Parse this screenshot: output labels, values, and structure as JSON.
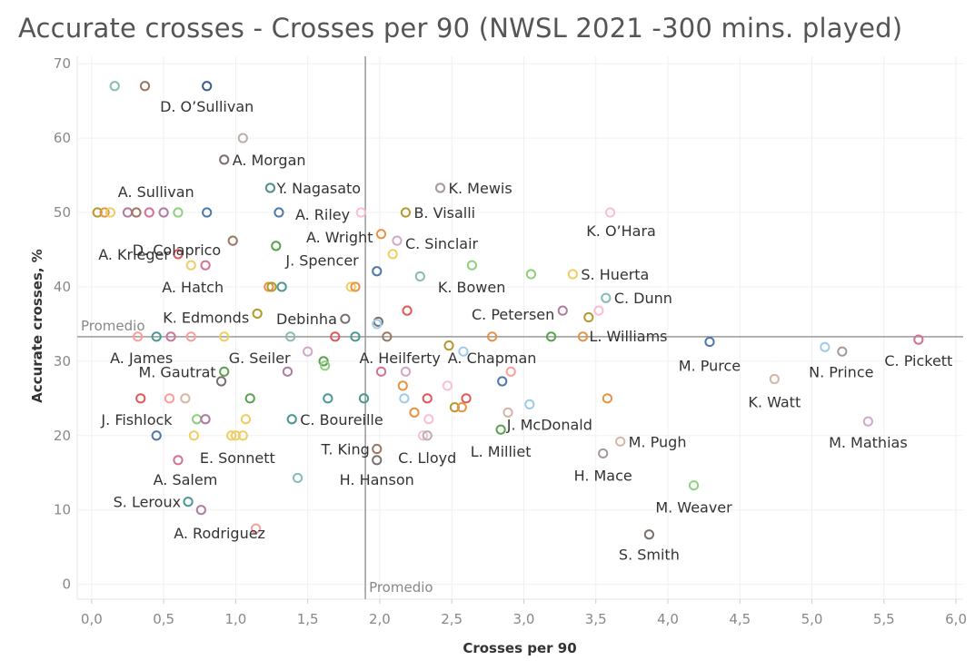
{
  "chart_data": {
    "type": "scatter",
    "title": "Accurate crosses - Crosses per 90 (NWSL 2021 -300 mins. played)",
    "xlabel": "Crosses per 90",
    "ylabel": "Accurate crosses, %",
    "xlim": [
      -0.1,
      6.05
    ],
    "ylim": [
      -2,
      71
    ],
    "xticks": [
      "0,0",
      "0,5",
      "1,0",
      "1,5",
      "2,0",
      "2,5",
      "3,0",
      "3,5",
      "4,0",
      "4,5",
      "5,0",
      "5,5",
      "6,0"
    ],
    "yticks": [
      "0",
      "10",
      "20",
      "30",
      "40",
      "50",
      "60",
      "70"
    ],
    "grid": true,
    "reference_lines": {
      "x_average": {
        "value": 1.9,
        "label": "Promedio"
      },
      "y_average": {
        "value": 33.3,
        "label": "Promedio"
      }
    },
    "points": [
      {
        "x": 0.8,
        "y": 67.0,
        "color": "#3b5f8a",
        "label": "D. O’Sullivan"
      },
      {
        "x": 0.16,
        "y": 67.0,
        "color": "#86bcb6",
        "label": ""
      },
      {
        "x": 0.37,
        "y": 67.0,
        "color": "#9d7660",
        "label": ""
      },
      {
        "x": 1.05,
        "y": 60.0,
        "color": "#bab0ac",
        "label": ""
      },
      {
        "x": 0.92,
        "y": 57.1,
        "color": "#79706e",
        "label": "A. Morgan"
      },
      {
        "x": 1.24,
        "y": 53.3,
        "color": "#4e8f8c",
        "label": "Y. Nagasato"
      },
      {
        "x": 2.42,
        "y": 53.3,
        "color": "#a49a99",
        "label": "K. Mewis"
      },
      {
        "x": 0.04,
        "y": 50.0,
        "color": "#b6992d",
        "label": ""
      },
      {
        "x": 0.09,
        "y": 50.0,
        "color": "#e49444",
        "label": ""
      },
      {
        "x": 0.13,
        "y": 50.0,
        "color": "#f1ce63",
        "label": ""
      },
      {
        "x": 0.25,
        "y": 50.0,
        "color": "#b07aa1",
        "label": ""
      },
      {
        "x": 0.31,
        "y": 50.0,
        "color": "#9d7660",
        "label": ""
      },
      {
        "x": 0.4,
        "y": 50.0,
        "color": "#d37295",
        "label": ""
      },
      {
        "x": 0.5,
        "y": 50.0,
        "color": "#b07aa1",
        "label": ""
      },
      {
        "x": 0.6,
        "y": 50.0,
        "color": "#8cd17d",
        "label": ""
      },
      {
        "x": 0.8,
        "y": 50.0,
        "color": "#4e79a7",
        "label": "A. Sullivan"
      },
      {
        "x": 1.3,
        "y": 50.0,
        "color": "#4e79a7",
        "label": "A. Riley"
      },
      {
        "x": 1.87,
        "y": 50.0,
        "color": "#fabfd2",
        "label": ""
      },
      {
        "x": 2.18,
        "y": 50.0,
        "color": "#b6992d",
        "label": "B. Visalli"
      },
      {
        "x": 3.6,
        "y": 50.0,
        "color": "#fabfd2",
        "label": "K. O’Hara"
      },
      {
        "x": 0.98,
        "y": 46.2,
        "color": "#9d7660",
        "label": "D. Colaprico"
      },
      {
        "x": 2.01,
        "y": 47.1,
        "color": "#e49444",
        "label": "A. Wright"
      },
      {
        "x": 2.12,
        "y": 46.2,
        "color": "#d4a6c8",
        "label": "C. Sinclair"
      },
      {
        "x": 1.28,
        "y": 45.5,
        "color": "#59a14f",
        "label": ""
      },
      {
        "x": 2.09,
        "y": 44.4,
        "color": "#f1ce63",
        "label": ""
      },
      {
        "x": 0.6,
        "y": 44.4,
        "color": "#e15759",
        "label": "A. Krieger"
      },
      {
        "x": 0.69,
        "y": 42.9,
        "color": "#f1ce63",
        "label": ""
      },
      {
        "x": 0.79,
        "y": 42.9,
        "color": "#d37295",
        "label": "A. Hatch"
      },
      {
        "x": 1.98,
        "y": 42.1,
        "color": "#4e79a7",
        "label": "J. Spencer"
      },
      {
        "x": 2.64,
        "y": 42.9,
        "color": "#8cd17d",
        "label": "K. Bowen"
      },
      {
        "x": 2.28,
        "y": 41.4,
        "color": "#86bcb6",
        "label": ""
      },
      {
        "x": 3.05,
        "y": 41.7,
        "color": "#8cd17d",
        "label": ""
      },
      {
        "x": 3.34,
        "y": 41.7,
        "color": "#f1ce63",
        "label": "S. Huerta"
      },
      {
        "x": 1.23,
        "y": 40.0,
        "color": "#e49444",
        "label": ""
      },
      {
        "x": 1.25,
        "y": 40.0,
        "color": "#b6992d",
        "label": ""
      },
      {
        "x": 1.32,
        "y": 40.0,
        "color": "#499894",
        "label": ""
      },
      {
        "x": 1.8,
        "y": 40.0,
        "color": "#f1ce63",
        "label": ""
      },
      {
        "x": 1.83,
        "y": 40.0,
        "color": "#e49444",
        "label": ""
      },
      {
        "x": 3.57,
        "y": 38.5,
        "color": "#86bcb6",
        "label": "C. Dunn"
      },
      {
        "x": 2.19,
        "y": 36.8,
        "color": "#e15759",
        "label": ""
      },
      {
        "x": 3.27,
        "y": 36.8,
        "color": "#b07aa1",
        "label": "C. Petersen"
      },
      {
        "x": 3.52,
        "y": 36.8,
        "color": "#fabfd2",
        "label": ""
      },
      {
        "x": 3.45,
        "y": 35.9,
        "color": "#b6992d",
        "label": ""
      },
      {
        "x": 1.15,
        "y": 36.4,
        "color": "#b6992d",
        "label": "K. Edmonds"
      },
      {
        "x": 1.76,
        "y": 35.7,
        "color": "#79706e",
        "label": "Debinha"
      },
      {
        "x": 1.99,
        "y": 35.3,
        "color": "#79706e",
        "label": ""
      },
      {
        "x": 1.98,
        "y": 35.0,
        "color": "#a0cbe8",
        "label": ""
      },
      {
        "x": 0.32,
        "y": 33.3,
        "color": "#ff9d9a",
        "label": ""
      },
      {
        "x": 0.45,
        "y": 33.3,
        "color": "#499894",
        "label": ""
      },
      {
        "x": 0.55,
        "y": 33.3,
        "color": "#d37295",
        "label": ""
      },
      {
        "x": 0.69,
        "y": 33.3,
        "color": "#ff9d9a",
        "label": "A. James"
      },
      {
        "x": 0.92,
        "y": 33.3,
        "color": "#f1ce63",
        "label": ""
      },
      {
        "x": 1.38,
        "y": 33.3,
        "color": "#86bcb6",
        "label": "G. Seiler"
      },
      {
        "x": 1.69,
        "y": 33.3,
        "color": "#e15759",
        "label": ""
      },
      {
        "x": 1.83,
        "y": 33.3,
        "color": "#499894",
        "label": ""
      },
      {
        "x": 2.05,
        "y": 33.3,
        "color": "#9d7660",
        "label": "A. Heilferty"
      },
      {
        "x": 2.78,
        "y": 33.3,
        "color": "#e49444",
        "label": "A. Chapman"
      },
      {
        "x": 3.19,
        "y": 33.3,
        "color": "#59a14f",
        "label": ""
      },
      {
        "x": 3.41,
        "y": 33.3,
        "color": "#e49444",
        "label": "L. Williams"
      },
      {
        "x": 2.48,
        "y": 32.1,
        "color": "#b6992d",
        "label": ""
      },
      {
        "x": 2.58,
        "y": 31.3,
        "color": "#a0cbe8",
        "label": ""
      },
      {
        "x": 4.29,
        "y": 32.6,
        "color": "#4e79a7",
        "label": "M. Purce"
      },
      {
        "x": 5.09,
        "y": 31.9,
        "color": "#a0cbe8",
        "label": "N. Prince"
      },
      {
        "x": 5.21,
        "y": 31.3,
        "color": "#a49a99",
        "label": ""
      },
      {
        "x": 5.74,
        "y": 32.9,
        "color": "#d37295",
        "label": "C. Pickett"
      },
      {
        "x": 1.5,
        "y": 31.3,
        "color": "#d4a6c8",
        "label": ""
      },
      {
        "x": 1.61,
        "y": 30.0,
        "color": "#59a14f",
        "label": ""
      },
      {
        "x": 1.62,
        "y": 29.4,
        "color": "#8cd17d",
        "label": ""
      },
      {
        "x": 0.92,
        "y": 28.6,
        "color": "#59a14f",
        "label": "M. Gautrat"
      },
      {
        "x": 0.9,
        "y": 27.3,
        "color": "#79706e",
        "label": ""
      },
      {
        "x": 1.36,
        "y": 28.6,
        "color": "#b07aa1",
        "label": ""
      },
      {
        "x": 2.01,
        "y": 28.6,
        "color": "#d37295",
        "label": ""
      },
      {
        "x": 2.18,
        "y": 28.6,
        "color": "#d4a6c8",
        "label": ""
      },
      {
        "x": 2.16,
        "y": 26.7,
        "color": "#e49444",
        "label": ""
      },
      {
        "x": 2.47,
        "y": 26.7,
        "color": "#fabfd2",
        "label": ""
      },
      {
        "x": 2.85,
        "y": 27.3,
        "color": "#4e79a7",
        "label": ""
      },
      {
        "x": 2.91,
        "y": 28.6,
        "color": "#ff9d9a",
        "label": ""
      },
      {
        "x": 4.74,
        "y": 27.6,
        "color": "#d7b5a6",
        "label": "K. Watt"
      },
      {
        "x": 0.34,
        "y": 25.0,
        "color": "#e15759",
        "label": ""
      },
      {
        "x": 0.54,
        "y": 25.0,
        "color": "#ff9d9a",
        "label": ""
      },
      {
        "x": 0.65,
        "y": 25.0,
        "color": "#d7b5a6",
        "label": ""
      },
      {
        "x": 1.1,
        "y": 25.0,
        "color": "#59a14f",
        "label": ""
      },
      {
        "x": 1.64,
        "y": 25.0,
        "color": "#499894",
        "label": ""
      },
      {
        "x": 1.89,
        "y": 25.0,
        "color": "#499894",
        "label": ""
      },
      {
        "x": 2.17,
        "y": 25.0,
        "color": "#a0cbe8",
        "label": ""
      },
      {
        "x": 2.33,
        "y": 25.0,
        "color": "#e15759",
        "label": ""
      },
      {
        "x": 2.6,
        "y": 25.0,
        "color": "#e15759",
        "label": ""
      },
      {
        "x": 3.58,
        "y": 25.0,
        "color": "#e49444",
        "label": ""
      },
      {
        "x": 2.52,
        "y": 23.8,
        "color": "#b6992d",
        "label": ""
      },
      {
        "x": 2.57,
        "y": 23.8,
        "color": "#e49444",
        "label": ""
      },
      {
        "x": 2.24,
        "y": 23.1,
        "color": "#e49444",
        "label": ""
      },
      {
        "x": 2.34,
        "y": 22.2,
        "color": "#fabfd2",
        "label": ""
      },
      {
        "x": 2.89,
        "y": 23.1,
        "color": "#d7b5a6",
        "label": ""
      },
      {
        "x": 3.04,
        "y": 24.2,
        "color": "#a0cbe8",
        "label": "J. McDonald"
      },
      {
        "x": 0.73,
        "y": 22.2,
        "color": "#8cd17d",
        "label": "J. Fishlock"
      },
      {
        "x": 0.79,
        "y": 22.2,
        "color": "#b07aa1",
        "label": ""
      },
      {
        "x": 1.07,
        "y": 22.2,
        "color": "#f1ce63",
        "label": ""
      },
      {
        "x": 1.39,
        "y": 22.2,
        "color": "#499894",
        "label": "C. Boureille"
      },
      {
        "x": 0.45,
        "y": 20.0,
        "color": "#4e79a7",
        "label": ""
      },
      {
        "x": 0.71,
        "y": 20.0,
        "color": "#f1ce63",
        "label": ""
      },
      {
        "x": 0.97,
        "y": 20.0,
        "color": "#f1ce63",
        "label": ""
      },
      {
        "x": 1.0,
        "y": 20.0,
        "color": "#f1ce63",
        "label": ""
      },
      {
        "x": 1.05,
        "y": 20.0,
        "color": "#f1ce63",
        "label": "E. Sonnett"
      },
      {
        "x": 2.3,
        "y": 20.0,
        "color": "#fabfd2",
        "label": ""
      },
      {
        "x": 2.33,
        "y": 20.0,
        "color": "#bab0ac",
        "label": "C. Lloyd"
      },
      {
        "x": 2.84,
        "y": 20.8,
        "color": "#59a14f",
        "label": "L. Milliet"
      },
      {
        "x": 3.67,
        "y": 19.2,
        "color": "#d7b5a6",
        "label": "M. Pugh"
      },
      {
        "x": 3.55,
        "y": 17.6,
        "color": "#a49a99",
        "label": "H. Mace"
      },
      {
        "x": 5.39,
        "y": 21.9,
        "color": "#d4a6c8",
        "label": "M. Mathias"
      },
      {
        "x": 1.98,
        "y": 18.2,
        "color": "#9d7660",
        "label": "T. King"
      },
      {
        "x": 1.98,
        "y": 16.7,
        "color": "#79706e",
        "label": "H. Hanson"
      },
      {
        "x": 0.6,
        "y": 16.7,
        "color": "#d37295",
        "label": "A. Salem"
      },
      {
        "x": 1.43,
        "y": 14.3,
        "color": "#86bcb6",
        "label": ""
      },
      {
        "x": 4.18,
        "y": 13.3,
        "color": "#8cd17d",
        "label": "M. Weaver"
      },
      {
        "x": 0.67,
        "y": 11.1,
        "color": "#499894",
        "label": "S. Leroux"
      },
      {
        "x": 0.76,
        "y": 10.0,
        "color": "#b07aa1",
        "label": ""
      },
      {
        "x": 1.14,
        "y": 7.5,
        "color": "#ff9d9a",
        "label": "A. Rodriguez"
      },
      {
        "x": 3.87,
        "y": 6.7,
        "color": "#79706e",
        "label": "S. Smith"
      }
    ]
  }
}
